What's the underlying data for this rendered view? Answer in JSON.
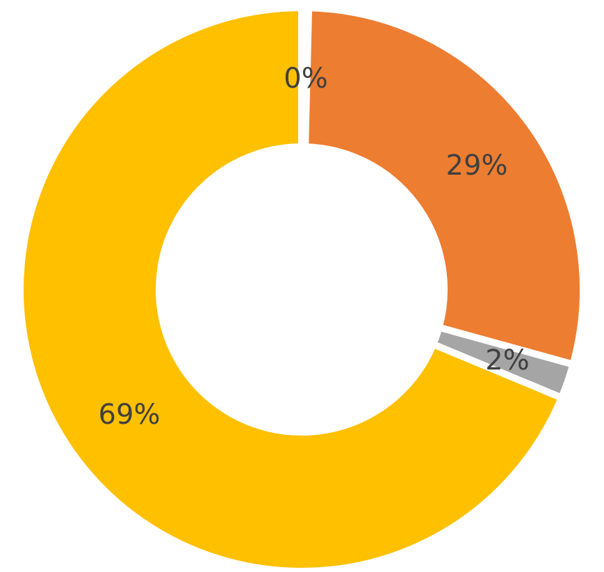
{
  "chart_data": {
    "type": "pie",
    "subtype": "donut",
    "title": "",
    "legend": "none",
    "slices": [
      {
        "value": 0.4,
        "label": "0%",
        "color": "#4472C4"
      },
      {
        "value": 29,
        "label": "29%",
        "color": "#ED7D31"
      },
      {
        "value": 2,
        "label": "2%",
        "color": "#A5A5A5"
      },
      {
        "value": 69,
        "label": "69%",
        "color": "#FFC000"
      }
    ]
  }
}
